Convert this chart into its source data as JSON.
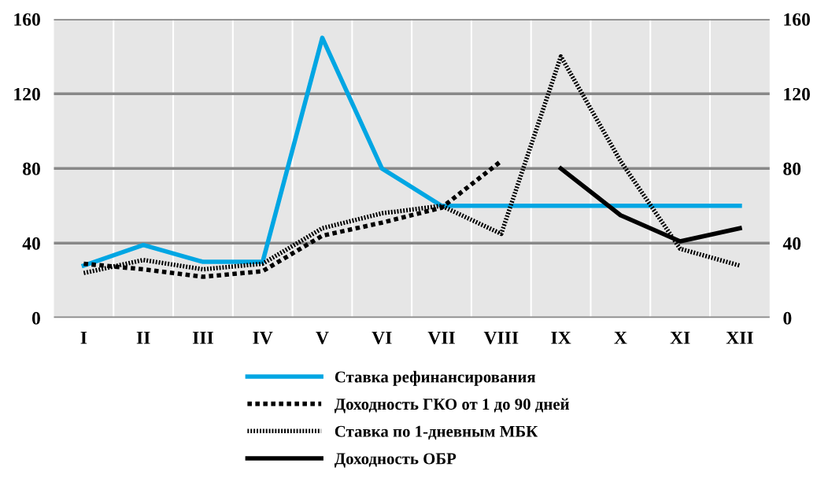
{
  "chart_data": {
    "type": "line",
    "categories": [
      "I",
      "II",
      "III",
      "IV",
      "V",
      "VI",
      "VII",
      "VIII",
      "IX",
      "X",
      "XI",
      "XII"
    ],
    "ylim": [
      0,
      160
    ],
    "yticks": [
      0,
      40,
      80,
      120,
      160
    ],
    "y2lim": [
      0,
      160
    ],
    "y2ticks": [
      0,
      40,
      80,
      120,
      160
    ],
    "grid": true,
    "legend": "bottom",
    "marker": "none",
    "series": [
      {
        "name": "Ставка рефинансирования",
        "color": "#00a6e3",
        "line_style": "solid",
        "values": [
          28,
          39,
          30,
          30,
          150,
          80,
          60,
          60,
          60,
          60,
          60,
          60
        ]
      },
      {
        "name": "Доходность ГКО от 1 до 90 дней",
        "color": "#000000",
        "line_style": "dashed",
        "values": [
          29,
          26,
          22,
          25,
          44,
          51,
          59,
          84,
          null,
          null,
          null,
          null
        ]
      },
      {
        "name": "Ставка по 1-дневным МБК",
        "color": "#000000",
        "line_style": "dotted",
        "values": [
          24,
          31,
          26,
          29,
          48,
          56,
          60,
          45,
          140,
          84,
          37,
          28
        ]
      },
      {
        "name": "Доходность ОБР",
        "color": "#000000",
        "line_style": "solid",
        "values": [
          null,
          null,
          null,
          null,
          null,
          null,
          null,
          null,
          80,
          55,
          41,
          48
        ]
      }
    ]
  }
}
